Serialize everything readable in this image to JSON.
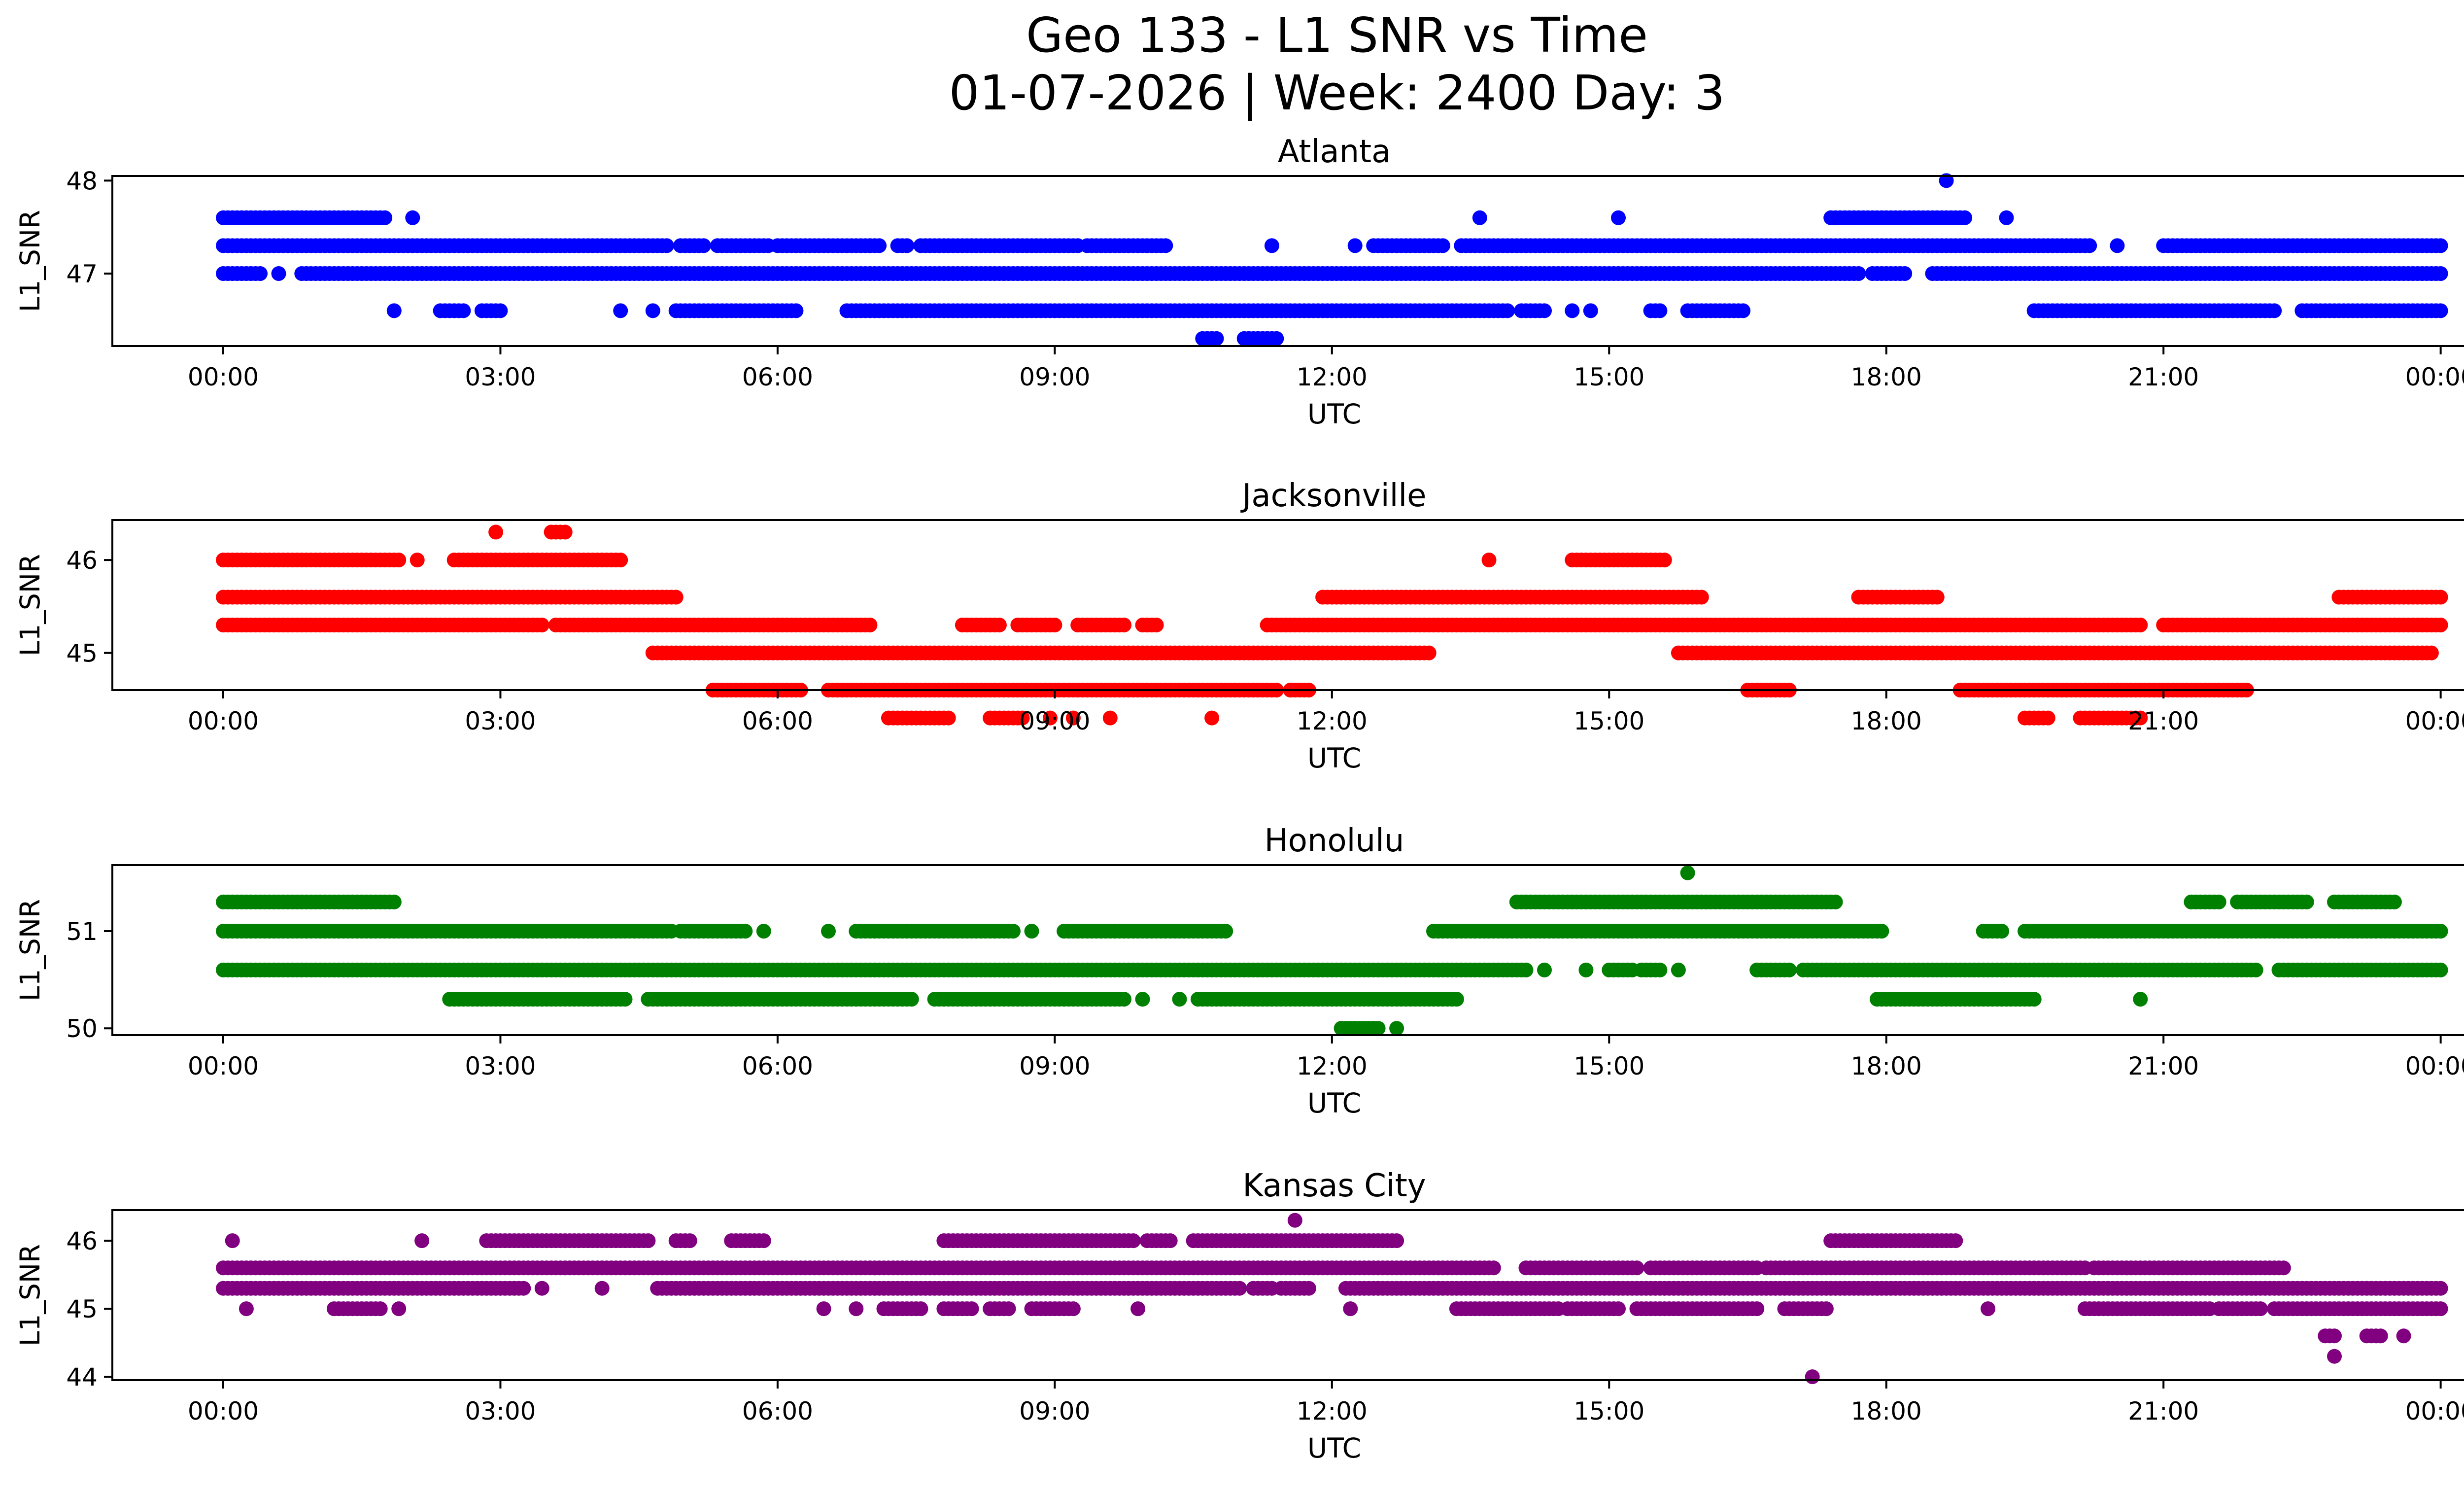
{
  "figure": {
    "title_line1": "Geo 133 - L1 SNR vs Time",
    "title_line2": "01-07-2026 | Week: 2400 Day: 3"
  },
  "chart_data": [
    {
      "type": "scatter",
      "title": "Atlanta",
      "xlabel": "UTC",
      "ylabel": "L1_SNR",
      "color": "#0000ff",
      "xlim": [
        -1.2,
        25.25
      ],
      "ylim": [
        46.22,
        48.05
      ],
      "yticks": [
        47,
        48
      ],
      "xticks": [
        "00:00",
        "03:00",
        "06:00",
        "09:00",
        "12:00",
        "15:00",
        "18:00",
        "21:00",
        "00:00"
      ],
      "series": [
        {
          "level": 47.6,
          "segments": [
            [
              0.0,
              1.75
            ],
            [
              2.05,
              2.05
            ],
            [
              13.6,
              13.6
            ],
            [
              15.1,
              15.1
            ],
            [
              17.4,
              18.85
            ],
            [
              19.3,
              19.3
            ]
          ]
        },
        {
          "level": 47.3,
          "segments": [
            [
              0.0,
              4.8
            ],
            [
              4.95,
              5.2
            ],
            [
              5.35,
              5.9
            ],
            [
              6.0,
              7.0
            ],
            [
              7.0,
              7.1
            ],
            [
              7.3,
              7.4
            ],
            [
              7.55,
              9.25
            ],
            [
              9.35,
              9.9
            ],
            [
              9.95,
              10.2
            ],
            [
              11.35,
              11.35
            ],
            [
              12.25,
              12.25
            ],
            [
              12.45,
              13.2
            ],
            [
              13.4,
              20.2
            ],
            [
              20.5,
              20.5
            ],
            [
              21.0,
              24.0
            ]
          ]
        },
        {
          "level": 47.0,
          "segments": [
            [
              0.0,
              0.4
            ],
            [
              0.6,
              0.6
            ],
            [
              0.85,
              17.7
            ],
            [
              17.85,
              18.2
            ],
            [
              18.5,
              24.0
            ]
          ]
        },
        {
          "level": 46.6,
          "segments": [
            [
              1.85,
              1.85
            ],
            [
              2.35,
              2.6
            ],
            [
              2.8,
              3.0
            ],
            [
              4.3,
              4.3
            ],
            [
              4.65,
              4.65
            ],
            [
              4.9,
              6.2
            ],
            [
              6.75,
              13.9
            ],
            [
              14.05,
              14.3
            ],
            [
              14.6,
              14.6
            ],
            [
              14.8,
              14.8
            ],
            [
              15.45,
              15.55
            ],
            [
              15.85,
              16.45
            ],
            [
              19.6,
              22.2
            ],
            [
              22.5,
              24.0
            ]
          ]
        },
        {
          "level": 46.3,
          "segments": [
            [
              10.6,
              10.75
            ],
            [
              11.05,
              11.4
            ]
          ]
        },
        {
          "level": 48.0,
          "segments": [
            [
              18.65,
              18.65
            ]
          ]
        }
      ]
    },
    {
      "type": "scatter",
      "title": "Jacksonville",
      "xlabel": "UTC",
      "ylabel": "L1_SNR",
      "color": "#ff0000",
      "xlim": [
        -1.2,
        25.25
      ],
      "ylim": [
        44.6,
        46.43
      ],
      "yticks": [
        45,
        46
      ],
      "xticks": [
        "00:00",
        "03:00",
        "06:00",
        "09:00",
        "12:00",
        "15:00",
        "18:00",
        "21:00",
        "00:00"
      ],
      "series": [
        {
          "level": 46.3,
          "segments": [
            [
              2.95,
              2.95
            ],
            [
              3.55,
              3.7
            ]
          ]
        },
        {
          "level": 46.0,
          "segments": [
            [
              0.0,
              1.9
            ],
            [
              2.1,
              2.1
            ],
            [
              2.5,
              4.3
            ],
            [
              13.7,
              13.7
            ],
            [
              14.6,
              15.6
            ]
          ]
        },
        {
          "level": 45.6,
          "segments": [
            [
              0.0,
              4.9
            ],
            [
              11.9,
              16.0
            ],
            [
              17.7,
              18.55
            ],
            [
              22.9,
              24.0
            ]
          ]
        },
        {
          "level": 45.3,
          "segments": [
            [
              0.0,
              3.45
            ],
            [
              3.6,
              7.0
            ],
            [
              8.0,
              8.4
            ],
            [
              8.6,
              9.0
            ],
            [
              9.25,
              9.75
            ],
            [
              9.95,
              10.1
            ],
            [
              11.3,
              20.75
            ],
            [
              21.0,
              24.0
            ]
          ]
        },
        {
          "level": 45.0,
          "segments": [
            [
              4.65,
              13.05
            ],
            [
              15.75,
              23.9
            ]
          ]
        },
        {
          "level": 44.6,
          "segments": [
            [
              5.3,
              6.25
            ],
            [
              6.55,
              11.05
            ],
            [
              11.1,
              11.4
            ],
            [
              11.55,
              11.75
            ],
            [
              16.5,
              16.95
            ],
            [
              18.8,
              21.9
            ]
          ]
        },
        {
          "level": 44.3,
          "segments": [
            [
              7.2,
              7.85
            ],
            [
              8.3,
              8.65
            ],
            [
              8.95,
              8.95
            ],
            [
              9.2,
              9.2
            ],
            [
              9.6,
              9.6
            ],
            [
              10.7,
              10.7
            ],
            [
              19.5,
              19.75
            ],
            [
              20.1,
              20.75
            ]
          ]
        }
      ]
    },
    {
      "type": "scatter",
      "title": "Honolulu",
      "xlabel": "UTC",
      "ylabel": "L1_SNR",
      "color": "#008000",
      "xlim": [
        -1.2,
        25.25
      ],
      "ylim": [
        49.93,
        51.68
      ],
      "yticks": [
        50,
        51
      ],
      "xticks": [
        "00:00",
        "03:00",
        "06:00",
        "09:00",
        "12:00",
        "15:00",
        "18:00",
        "21:00",
        "00:00"
      ],
      "series": [
        {
          "level": 51.6,
          "segments": [
            [
              15.85,
              15.85
            ]
          ]
        },
        {
          "level": 51.3,
          "segments": [
            [
              0.0,
              1.85
            ],
            [
              14.0,
              17.45
            ],
            [
              21.3,
              21.6
            ],
            [
              21.8,
              22.55
            ],
            [
              22.85,
              23.5
            ]
          ]
        },
        {
          "level": 51.0,
          "segments": [
            [
              0.0,
              4.85
            ],
            [
              4.95,
              5.65
            ],
            [
              5.85,
              5.85
            ],
            [
              6.55,
              6.55
            ],
            [
              6.85,
              8.55
            ],
            [
              8.75,
              8.75
            ],
            [
              9.1,
              10.85
            ],
            [
              13.1,
              17.95
            ],
            [
              19.05,
              19.25
            ],
            [
              19.5,
              24.0
            ]
          ]
        },
        {
          "level": 50.6,
          "segments": [
            [
              0.0,
              14.1
            ],
            [
              14.3,
              14.3
            ],
            [
              14.75,
              14.75
            ],
            [
              15.0,
              15.25
            ],
            [
              15.35,
              15.55
            ],
            [
              15.75,
              15.75
            ],
            [
              16.6,
              16.95
            ],
            [
              17.1,
              22.0
            ],
            [
              22.25,
              24.0
            ]
          ]
        },
        {
          "level": 50.3,
          "segments": [
            [
              2.45,
              4.35
            ],
            [
              4.6,
              7.45
            ],
            [
              7.7,
              9.75
            ],
            [
              9.95,
              9.95
            ],
            [
              10.35,
              10.35
            ],
            [
              10.55,
              13.35
            ],
            [
              17.9,
              19.6
            ],
            [
              20.75,
              20.75
            ]
          ]
        },
        {
          "level": 50.0,
          "segments": [
            [
              12.1,
              12.5
            ],
            [
              12.7,
              12.7
            ]
          ]
        }
      ]
    },
    {
      "type": "scatter",
      "title": "Kansas City",
      "xlabel": "UTC",
      "ylabel": "L1_SNR",
      "color": "#800080",
      "xlim": [
        -1.2,
        25.25
      ],
      "ylim": [
        43.95,
        46.45
      ],
      "yticks": [
        44,
        45,
        46
      ],
      "xticks": [
        "00:00",
        "03:00",
        "06:00",
        "09:00",
        "12:00",
        "15:00",
        "18:00",
        "21:00",
        "00:00"
      ],
      "series": [
        {
          "level": 46.3,
          "segments": [
            [
              11.6,
              11.6
            ]
          ]
        },
        {
          "level": 46.0,
          "segments": [
            [
              0.1,
              0.1
            ],
            [
              2.15,
              2.15
            ],
            [
              2.85,
              4.6
            ],
            [
              4.9,
              5.05
            ],
            [
              5.5,
              5.85
            ],
            [
              7.8,
              9.85
            ],
            [
              10.0,
              10.25
            ],
            [
              10.5,
              12.7
            ],
            [
              17.4,
              18.75
            ]
          ]
        },
        {
          "level": 45.6,
          "segments": [
            [
              0.0,
              13.75
            ],
            [
              14.1,
              15.3
            ],
            [
              15.45,
              16.6
            ],
            [
              16.7,
              20.15
            ],
            [
              20.25,
              22.3
            ]
          ]
        },
        {
          "level": 45.3,
          "segments": [
            [
              0.0,
              3.25
            ],
            [
              3.45,
              3.45
            ],
            [
              4.1,
              4.1
            ],
            [
              4.7,
              11.0
            ],
            [
              11.15,
              11.35
            ],
            [
              11.45,
              11.75
            ],
            [
              12.15,
              24.0
            ]
          ]
        },
        {
          "level": 45.0,
          "segments": [
            [
              0.25,
              0.25
            ],
            [
              1.2,
              1.7
            ],
            [
              1.9,
              1.9
            ],
            [
              6.5,
              6.5
            ],
            [
              6.85,
              6.85
            ],
            [
              7.15,
              7.55
            ],
            [
              7.8,
              8.1
            ],
            [
              8.3,
              8.5
            ],
            [
              8.75,
              9.2
            ],
            [
              9.9,
              9.9
            ],
            [
              12.2,
              12.2
            ],
            [
              13.35,
              14.45
            ],
            [
              14.55,
              15.1
            ],
            [
              15.3,
              16.6
            ],
            [
              16.9,
              17.35
            ],
            [
              19.1,
              19.1
            ],
            [
              20.15,
              21.5
            ],
            [
              21.6,
              22.05
            ],
            [
              22.2,
              24.0
            ]
          ]
        },
        {
          "level": 44.6,
          "segments": [
            [
              22.75,
              22.85
            ],
            [
              23.2,
              23.35
            ],
            [
              23.6,
              23.6
            ]
          ]
        },
        {
          "level": 44.3,
          "segments": [
            [
              22.85,
              22.85
            ]
          ]
        },
        {
          "level": 44.0,
          "segments": [
            [
              17.2,
              17.2
            ]
          ]
        }
      ]
    }
  ]
}
